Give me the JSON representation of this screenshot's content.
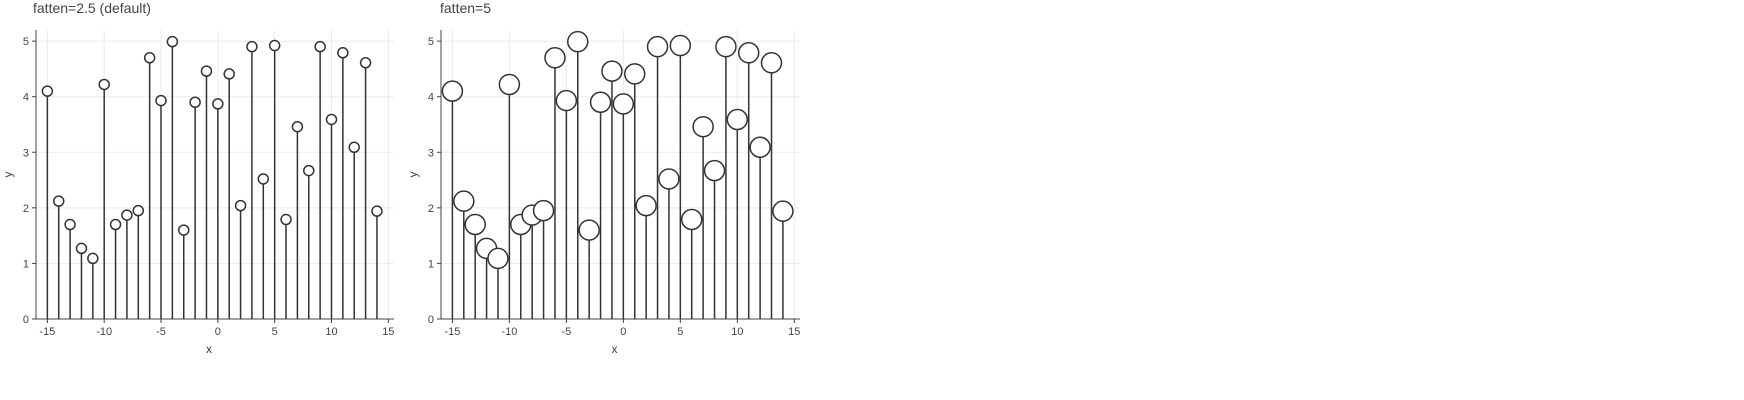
{
  "chart_data": [
    {
      "type": "lollipop",
      "title": "fatten=2.5 (default)",
      "xlabel": "x",
      "ylabel": "y",
      "xlim": [
        -16,
        15.5
      ],
      "ylim": [
        0,
        5.2
      ],
      "xticks": [
        -15,
        -10,
        -5,
        0,
        5,
        10,
        15
      ],
      "yticks": [
        0,
        1,
        2,
        3,
        4,
        5
      ],
      "grid": true,
      "marker": "open-circle",
      "marker_scale": 1,
      "x": [
        -15,
        -14,
        -13,
        -12,
        -11,
        -10,
        -9,
        -8,
        -7,
        -6,
        -5,
        -4,
        -3,
        -2,
        -1,
        0,
        1,
        2,
        3,
        4,
        5,
        6,
        7,
        8,
        9,
        10,
        11,
        12,
        13,
        14
      ],
      "y": [
        4.1,
        2.12,
        1.7,
        1.27,
        1.09,
        4.22,
        1.7,
        1.87,
        1.95,
        4.7,
        3.93,
        4.99,
        1.6,
        3.9,
        4.46,
        3.87,
        4.41,
        2.04,
        4.9,
        2.52,
        4.92,
        1.79,
        3.46,
        2.67,
        4.9,
        3.59,
        4.79,
        3.09,
        4.61,
        1.94
      ]
    },
    {
      "type": "lollipop",
      "title": "fatten=5",
      "xlabel": "x",
      "ylabel": "y",
      "xlim": [
        -16,
        15.5
      ],
      "ylim": [
        0,
        5.2
      ],
      "xticks": [
        -15,
        -10,
        -5,
        0,
        5,
        10,
        15
      ],
      "yticks": [
        0,
        1,
        2,
        3,
        4,
        5
      ],
      "grid": true,
      "marker": "open-circle",
      "marker_scale": 2,
      "x": [
        -15,
        -14,
        -13,
        -12,
        -11,
        -10,
        -9,
        -8,
        -7,
        -6,
        -5,
        -4,
        -3,
        -2,
        -1,
        0,
        1,
        2,
        3,
        4,
        5,
        6,
        7,
        8,
        9,
        10,
        11,
        12,
        13,
        14
      ],
      "y": [
        4.1,
        2.12,
        1.7,
        1.27,
        1.09,
        4.22,
        1.7,
        1.87,
        1.95,
        4.7,
        3.93,
        4.99,
        1.6,
        3.9,
        4.46,
        3.87,
        4.41,
        2.04,
        4.9,
        2.52,
        4.92,
        1.79,
        3.46,
        2.67,
        4.9,
        3.59,
        4.79,
        3.09,
        4.61,
        1.94
      ]
    }
  ]
}
